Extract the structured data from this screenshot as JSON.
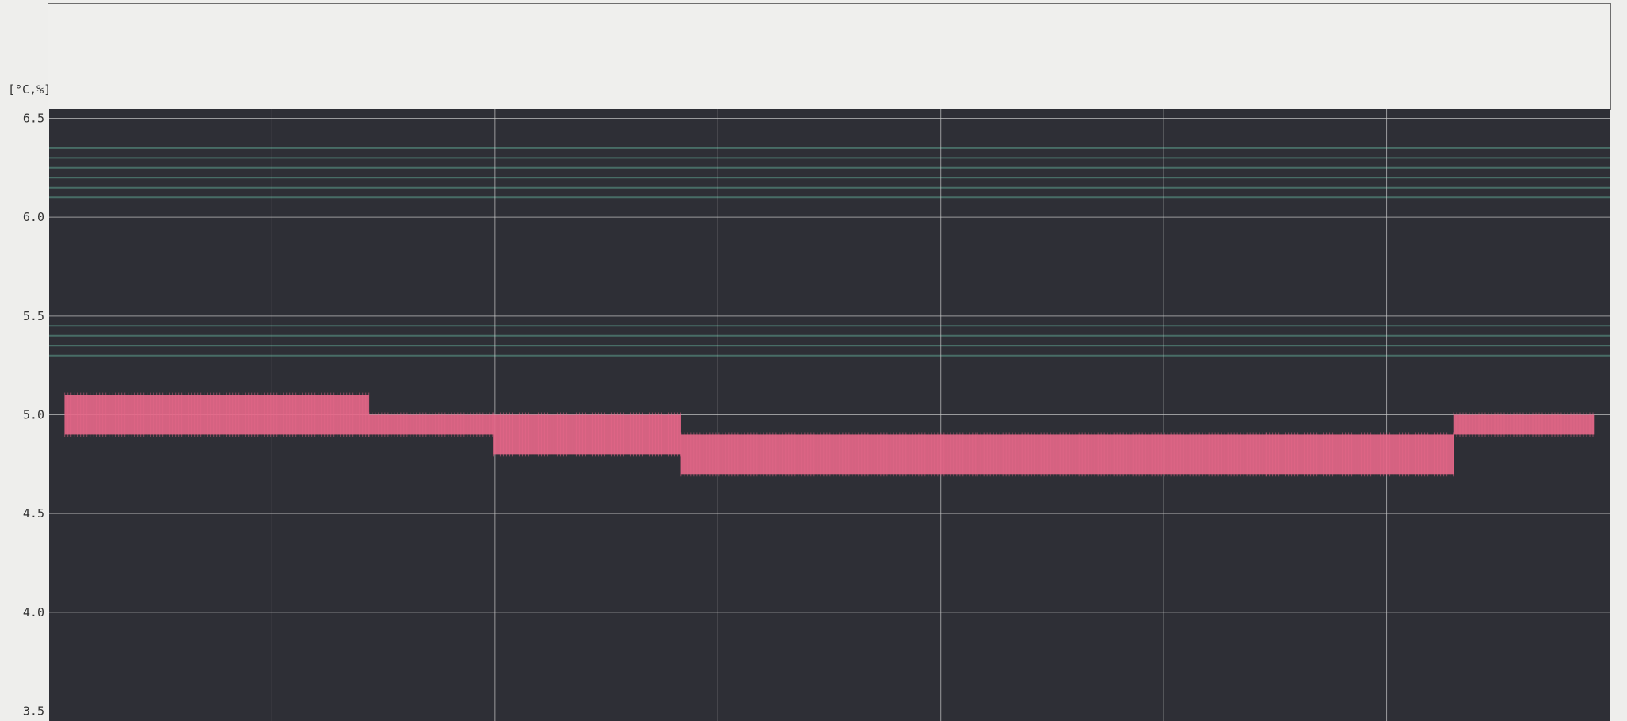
{
  "header": {
    "top_text": "",
    "unit_label": "[°C,%]"
  },
  "colors": {
    "plot_bg": "#2e2f36",
    "grid": "#c9c9c9",
    "series": "#e8688a",
    "band": "#4f7d72"
  },
  "chart_data": {
    "type": "line",
    "title": "",
    "xlabel": "",
    "ylabel": "[°C,%]",
    "ylim": [
      3.45,
      6.55
    ],
    "yticks": [
      6.5,
      6.0,
      5.5,
      5.0,
      4.5,
      4.0,
      3.5
    ],
    "ytick_labels": [
      "6.5",
      "6.0",
      "5.5",
      "5.0",
      "4.5",
      "4.0",
      "3.5"
    ],
    "grid": true,
    "x_divisions": 7,
    "green_bands": [
      6.35,
      6.3,
      6.25,
      6.2,
      6.15,
      6.1,
      5.45,
      5.4,
      5.35,
      5.3
    ],
    "series": [
      {
        "segments": [
          {
            "x0": 0.01,
            "x1": 0.205,
            "low": 4.9,
            "high": 5.1
          },
          {
            "x0": 0.205,
            "x1": 0.285,
            "low": 4.9,
            "high": 5.0
          },
          {
            "x0": 0.285,
            "x1": 0.405,
            "low": 4.8,
            "high": 5.0
          },
          {
            "x0": 0.405,
            "x1": 0.595,
            "low": 4.7,
            "high": 4.9
          },
          {
            "x0": 0.595,
            "x1": 0.78,
            "low": 4.7,
            "high": 4.9
          },
          {
            "x0": 0.78,
            "x1": 0.9,
            "low": 4.7,
            "high": 4.9
          },
          {
            "x0": 0.9,
            "x1": 0.99,
            "low": 4.9,
            "high": 5.0
          }
        ]
      }
    ]
  }
}
